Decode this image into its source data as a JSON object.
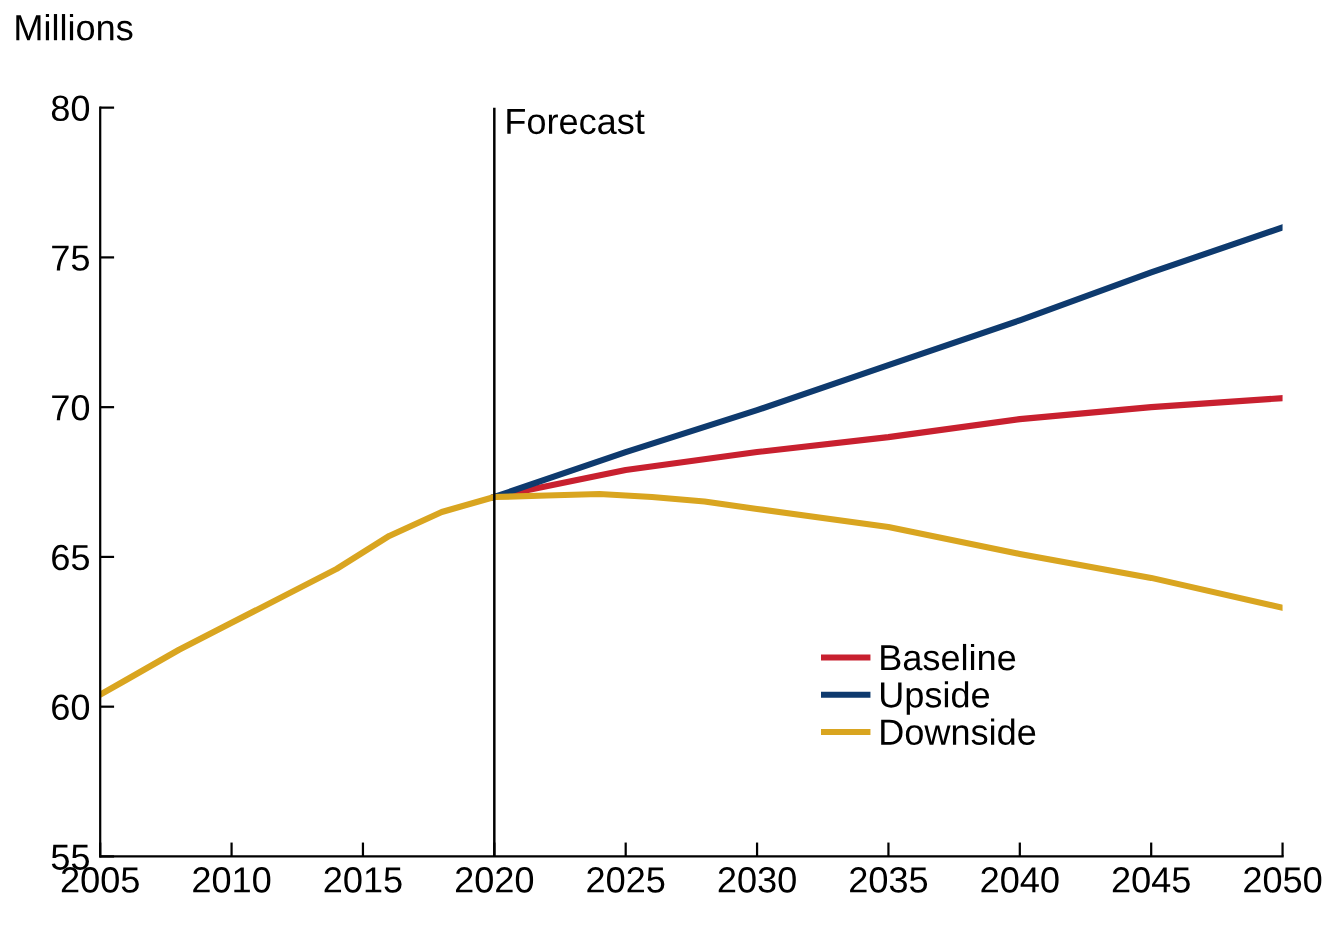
{
  "chart_data": {
    "type": "line",
    "ylabel": "Millions",
    "xlim": [
      2005,
      2050
    ],
    "xticks": [
      2005,
      2010,
      2015,
      2020,
      2025,
      2030,
      2035,
      2040,
      2045,
      2050
    ],
    "ylim": [
      55,
      80
    ],
    "yticks": [
      55,
      60,
      65,
      70,
      75,
      80
    ],
    "grid": false,
    "legend": "bottom right",
    "marker": "none",
    "line_style": "solid",
    "ref_lines": [
      {
        "axis": "x",
        "value": 2020,
        "label": "Forecast",
        "color": "#000000"
      }
    ],
    "series": [
      {
        "name": "Baseline",
        "color": "#c8202f",
        "x": [
          2020,
          2025,
          2030,
          2035,
          2040,
          2045,
          2050
        ],
        "values": [
          67.0,
          67.9,
          68.5,
          69.0,
          69.6,
          70.0,
          70.3
        ]
      },
      {
        "name": "Upside",
        "color": "#0e3a6e",
        "x": [
          2020,
          2025,
          2030,
          2035,
          2040,
          2045,
          2050
        ],
        "values": [
          67.0,
          68.5,
          69.9,
          71.4,
          72.9,
          74.5,
          76.0
        ]
      },
      {
        "name": "Downside",
        "color": "#d9a520",
        "x": [
          2005,
          2006,
          2008,
          2010,
          2012,
          2014,
          2016,
          2018,
          2020,
          2022,
          2024,
          2026,
          2028,
          2030,
          2035,
          2040,
          2045,
          2050
        ],
        "values": [
          60.4,
          60.9,
          61.9,
          62.8,
          63.7,
          64.6,
          65.7,
          66.5,
          67.0,
          67.05,
          67.1,
          67.0,
          66.85,
          66.6,
          66.0,
          65.1,
          64.3,
          63.3
        ]
      }
    ]
  }
}
